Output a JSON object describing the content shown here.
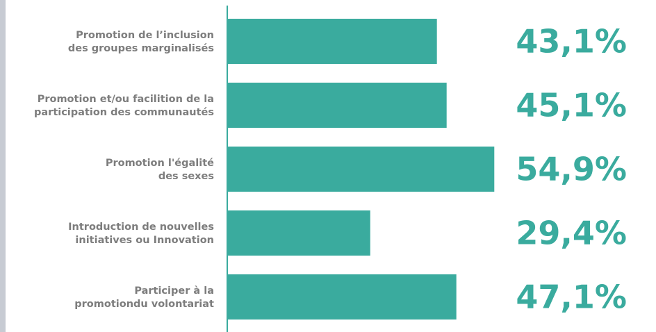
{
  "chart_data": {
    "type": "bar",
    "orientation": "horizontal",
    "categories": [
      [
        "Promotion de l’inclusion",
        "des groupes marginalisés"
      ],
      [
        "Promotion et/ou facilition de la",
        "participation des communautés"
      ],
      [
        "Promotion l'égalité",
        "des sexes"
      ],
      [
        "Introduction de nouvelles",
        "initiatives ou Innovation"
      ],
      [
        "Participer à la",
        "promotiondu volontariat"
      ]
    ],
    "values": [
      43.1,
      45.1,
      54.9,
      29.4,
      47.1
    ],
    "value_labels": [
      "43,1%",
      "45,1%",
      "54,9%",
      "29,4%",
      "47,1%"
    ],
    "title": "",
    "xlabel": "",
    "ylabel": "",
    "xlim": [
      0,
      58
    ],
    "grid": false,
    "legend": "none",
    "colors": {
      "bar": "#3aab9e",
      "value_text": "#3aab9e",
      "label_text": "#7d7d7d",
      "axis": "#3aab9e",
      "left_border": "#c7cbd3"
    }
  }
}
